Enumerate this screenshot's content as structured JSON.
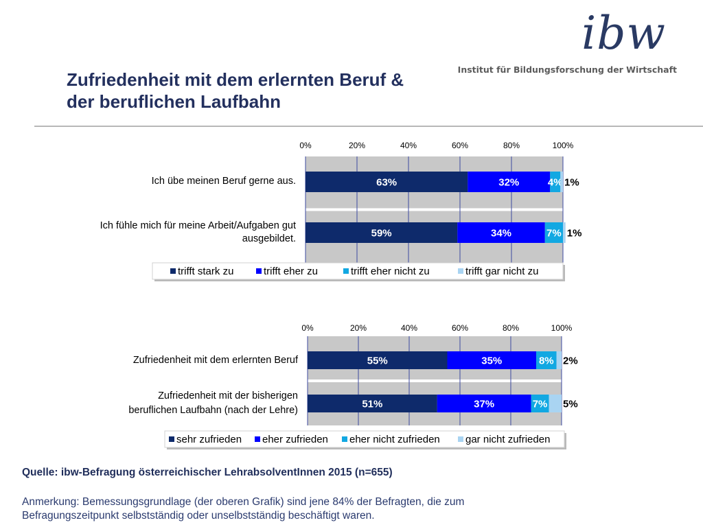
{
  "header": {
    "logo_text": "ibw",
    "logo_subtitle": "Institut für Bildungsforschung der Wirtschaft",
    "title_line1": "Zufriedenheit mit dem erlernten Beruf &",
    "title_line2": "der beruflichen Laufbahn"
  },
  "footer": {
    "source": "Quelle: ibw-Befragung österreichischer LehrabsolventInnen 2015 (n=655)",
    "note": "Anmerkung: Bemessungsgrundlage (der oberen Grafik) sind jene 84% der Befragten, die zum Befragungszeitpunkt selbstständig oder unselbstständig beschäftigt waren."
  },
  "colors": {
    "series": [
      "#0e2a6b",
      "#0000ff",
      "#12a8e2",
      "#a9d4f2"
    ],
    "title": "#23305e"
  },
  "chart_data": [
    {
      "type": "bar",
      "orientation": "horizontal",
      "stacked": true,
      "xlim": [
        0,
        100
      ],
      "ticks": [
        "0%",
        "20%",
        "40%",
        "60%",
        "80%",
        "100%"
      ],
      "grid": true,
      "legend_position": "bottom",
      "categories": [
        [
          "Ich übe meinen Beruf gerne aus."
        ],
        [
          "Ich fühle mich für meine Arbeit/Aufgaben gut",
          "ausgebildet."
        ]
      ],
      "series": [
        {
          "name": "trifft stark zu",
          "values": [
            63,
            59
          ],
          "labels": [
            "63%",
            "59%"
          ]
        },
        {
          "name": "trifft eher zu",
          "values": [
            32,
            34
          ],
          "labels": [
            "32%",
            "34%"
          ]
        },
        {
          "name": "trifft eher nicht zu",
          "values": [
            4,
            7
          ],
          "labels": [
            "4%",
            "7%"
          ]
        },
        {
          "name": "trifft gar nicht zu",
          "values": [
            1,
            1
          ],
          "labels": [
            "1%",
            "1%"
          ]
        }
      ]
    },
    {
      "type": "bar",
      "orientation": "horizontal",
      "stacked": true,
      "xlim": [
        0,
        100
      ],
      "ticks": [
        "0%",
        "20%",
        "40%",
        "60%",
        "80%",
        "100%"
      ],
      "grid": true,
      "legend_position": "bottom",
      "categories": [
        [
          "Zufriedenheit mit dem erlernten Beruf"
        ],
        [
          "Zufriedenheit mit der bisherigen",
          "beruflichen Laufbahn (nach der Lehre)"
        ]
      ],
      "series": [
        {
          "name": "sehr zufrieden",
          "values": [
            55,
            51
          ],
          "labels": [
            "55%",
            "51%"
          ]
        },
        {
          "name": "eher zufrieden",
          "values": [
            35,
            37
          ],
          "labels": [
            "35%",
            "37%"
          ]
        },
        {
          "name": "eher nicht zufrieden",
          "values": [
            8,
            7
          ],
          "labels": [
            "8%",
            "7%"
          ]
        },
        {
          "name": "gar nicht zufrieden",
          "values": [
            2,
            5
          ],
          "labels": [
            "2%",
            "5%"
          ]
        }
      ]
    }
  ]
}
